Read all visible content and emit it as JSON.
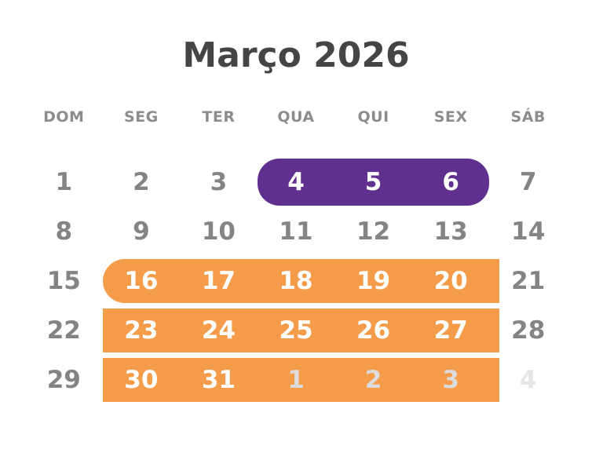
{
  "title": "Março 2026",
  "weekday_headers": [
    "DOM",
    "SEG",
    "TER",
    "QUA",
    "QUI",
    "SEX",
    "SÁB"
  ],
  "colors": {
    "purple": "#60308F",
    "orange": "#F49C4A",
    "title": "#454545",
    "weekday": "#8C8C8C",
    "day": "#848484",
    "day_on_band": "#FFFFFF",
    "muted_on_band": "#DCDCDC",
    "muted": "#E6E6E6"
  },
  "weeks": [
    {
      "band": {
        "color": "purple",
        "start": 3,
        "end": 5,
        "round_left": true,
        "round_right": true
      },
      "days": [
        {
          "label": "1",
          "state": "normal"
        },
        {
          "label": "2",
          "state": "normal"
        },
        {
          "label": "3",
          "state": "normal"
        },
        {
          "label": "4",
          "state": "active"
        },
        {
          "label": "5",
          "state": "active"
        },
        {
          "label": "6",
          "state": "active"
        },
        {
          "label": "7",
          "state": "normal"
        }
      ]
    },
    {
      "band": null,
      "days": [
        {
          "label": "8",
          "state": "normal"
        },
        {
          "label": "9",
          "state": "normal"
        },
        {
          "label": "10",
          "state": "normal"
        },
        {
          "label": "11",
          "state": "normal"
        },
        {
          "label": "12",
          "state": "normal"
        },
        {
          "label": "13",
          "state": "normal"
        },
        {
          "label": "14",
          "state": "normal"
        }
      ]
    },
    {
      "band": {
        "color": "orange",
        "start": 1,
        "end": 5,
        "round_left": true,
        "round_right": false
      },
      "days": [
        {
          "label": "15",
          "state": "normal"
        },
        {
          "label": "16",
          "state": "active"
        },
        {
          "label": "17",
          "state": "active"
        },
        {
          "label": "18",
          "state": "active"
        },
        {
          "label": "19",
          "state": "active"
        },
        {
          "label": "20",
          "state": "active"
        },
        {
          "label": "21",
          "state": "normal"
        }
      ]
    },
    {
      "band": {
        "color": "orange",
        "start": 1,
        "end": 5,
        "round_left": false,
        "round_right": false
      },
      "days": [
        {
          "label": "22",
          "state": "normal"
        },
        {
          "label": "23",
          "state": "active"
        },
        {
          "label": "24",
          "state": "active"
        },
        {
          "label": "25",
          "state": "active"
        },
        {
          "label": "26",
          "state": "active"
        },
        {
          "label": "27",
          "state": "active"
        },
        {
          "label": "28",
          "state": "normal"
        }
      ]
    },
    {
      "band": {
        "color": "orange",
        "start": 1,
        "end": 5,
        "round_left": false,
        "round_right": false
      },
      "days": [
        {
          "label": "29",
          "state": "normal"
        },
        {
          "label": "30",
          "state": "active"
        },
        {
          "label": "31",
          "state": "active"
        },
        {
          "label": "1",
          "state": "muted-band"
        },
        {
          "label": "2",
          "state": "muted-band"
        },
        {
          "label": "3",
          "state": "muted-band"
        },
        {
          "label": "4",
          "state": "muted"
        }
      ]
    }
  ]
}
